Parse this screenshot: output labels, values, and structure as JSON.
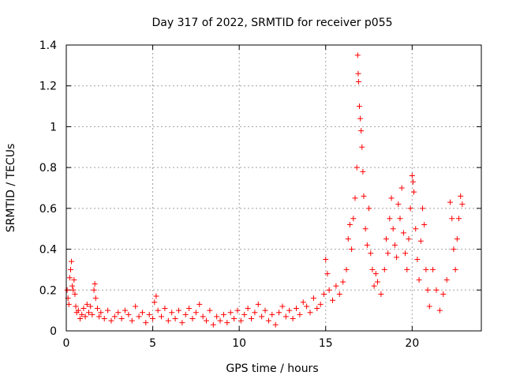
{
  "chart_data": {
    "type": "scatter",
    "title": "Day 317 of 2022, SRMTID for receiver p055",
    "xlabel": "GPS time / hours",
    "ylabel": "SRMTID / TECUs",
    "xlim": [
      0,
      24
    ],
    "ylim": [
      0,
      1.4
    ],
    "xticks": [
      0,
      5,
      10,
      15,
      20
    ],
    "xtick_labels": [
      "0",
      "5",
      "10",
      "15",
      "20"
    ],
    "yticks": [
      0,
      0.2,
      0.4,
      0.6,
      0.8,
      1.0,
      1.2,
      1.4
    ],
    "ytick_labels": [
      "0",
      "0.2",
      "0.4",
      "0.6",
      "0.8",
      "1",
      "1.2",
      "1.4"
    ],
    "grid": true,
    "marker": "+",
    "marker_color": "#ff0000",
    "series": [
      {
        "name": "SRMTID",
        "points": [
          [
            0.05,
            0.2
          ],
          [
            0.1,
            0.16
          ],
          [
            0.15,
            0.13
          ],
          [
            0.2,
            0.26
          ],
          [
            0.25,
            0.3
          ],
          [
            0.3,
            0.34
          ],
          [
            0.35,
            0.22
          ],
          [
            0.4,
            0.2
          ],
          [
            0.45,
            0.25
          ],
          [
            0.5,
            0.18
          ],
          [
            0.55,
            0.12
          ],
          [
            0.6,
            0.09
          ],
          [
            0.7,
            0.1
          ],
          [
            0.8,
            0.06
          ],
          [
            0.9,
            0.08
          ],
          [
            1.0,
            0.11
          ],
          [
            1.1,
            0.07
          ],
          [
            1.2,
            0.13
          ],
          [
            1.3,
            0.09
          ],
          [
            1.4,
            0.12
          ],
          [
            1.5,
            0.08
          ],
          [
            1.6,
            0.2
          ],
          [
            1.65,
            0.23
          ],
          [
            1.7,
            0.16
          ],
          [
            1.8,
            0.11
          ],
          [
            1.9,
            0.07
          ],
          [
            2.0,
            0.09
          ],
          [
            2.2,
            0.06
          ],
          [
            2.4,
            0.1
          ],
          [
            2.6,
            0.05
          ],
          [
            2.8,
            0.07
          ],
          [
            3.0,
            0.09
          ],
          [
            3.2,
            0.06
          ],
          [
            3.4,
            0.1
          ],
          [
            3.6,
            0.08
          ],
          [
            3.8,
            0.05
          ],
          [
            4.0,
            0.12
          ],
          [
            4.2,
            0.07
          ],
          [
            4.4,
            0.09
          ],
          [
            4.6,
            0.04
          ],
          [
            4.8,
            0.08
          ],
          [
            5.0,
            0.06
          ],
          [
            5.1,
            0.14
          ],
          [
            5.2,
            0.17
          ],
          [
            5.3,
            0.1
          ],
          [
            5.5,
            0.07
          ],
          [
            5.7,
            0.11
          ],
          [
            5.9,
            0.05
          ],
          [
            6.1,
            0.09
          ],
          [
            6.3,
            0.06
          ],
          [
            6.5,
            0.1
          ],
          [
            6.7,
            0.04
          ],
          [
            6.9,
            0.08
          ],
          [
            7.1,
            0.11
          ],
          [
            7.3,
            0.06
          ],
          [
            7.5,
            0.09
          ],
          [
            7.7,
            0.13
          ],
          [
            7.9,
            0.07
          ],
          [
            8.1,
            0.05
          ],
          [
            8.3,
            0.1
          ],
          [
            8.5,
            0.03
          ],
          [
            8.7,
            0.07
          ],
          [
            8.9,
            0.05
          ],
          [
            9.1,
            0.08
          ],
          [
            9.3,
            0.04
          ],
          [
            9.5,
            0.09
          ],
          [
            9.7,
            0.06
          ],
          [
            9.9,
            0.1
          ],
          [
            10.1,
            0.05
          ],
          [
            10.3,
            0.08
          ],
          [
            10.5,
            0.11
          ],
          [
            10.7,
            0.06
          ],
          [
            10.9,
            0.09
          ],
          [
            11.1,
            0.13
          ],
          [
            11.3,
            0.07
          ],
          [
            11.5,
            0.1
          ],
          [
            11.7,
            0.05
          ],
          [
            11.9,
            0.08
          ],
          [
            12.1,
            0.03
          ],
          [
            12.3,
            0.09
          ],
          [
            12.5,
            0.12
          ],
          [
            12.7,
            0.07
          ],
          [
            12.9,
            0.1
          ],
          [
            13.1,
            0.06
          ],
          [
            13.3,
            0.11
          ],
          [
            13.5,
            0.08
          ],
          [
            13.7,
            0.14
          ],
          [
            13.9,
            0.12
          ],
          [
            14.1,
            0.09
          ],
          [
            14.3,
            0.16
          ],
          [
            14.5,
            0.11
          ],
          [
            14.7,
            0.13
          ],
          [
            14.9,
            0.18
          ],
          [
            15.0,
            0.35
          ],
          [
            15.1,
            0.28
          ],
          [
            15.2,
            0.2
          ],
          [
            15.4,
            0.15
          ],
          [
            15.6,
            0.22
          ],
          [
            15.8,
            0.18
          ],
          [
            16.0,
            0.24
          ],
          [
            16.2,
            0.3
          ],
          [
            16.3,
            0.45
          ],
          [
            16.4,
            0.52
          ],
          [
            16.5,
            0.4
          ],
          [
            16.6,
            0.55
          ],
          [
            16.7,
            0.65
          ],
          [
            16.8,
            0.8
          ],
          [
            16.85,
            1.35
          ],
          [
            16.88,
            1.26
          ],
          [
            16.9,
            1.22
          ],
          [
            16.95,
            1.1
          ],
          [
            17.0,
            1.04
          ],
          [
            17.05,
            0.98
          ],
          [
            17.1,
            0.9
          ],
          [
            17.15,
            0.78
          ],
          [
            17.2,
            0.66
          ],
          [
            17.3,
            0.5
          ],
          [
            17.4,
            0.42
          ],
          [
            17.5,
            0.6
          ],
          [
            17.6,
            0.38
          ],
          [
            17.7,
            0.3
          ],
          [
            17.8,
            0.22
          ],
          [
            17.9,
            0.28
          ],
          [
            18.0,
            0.24
          ],
          [
            18.2,
            0.18
          ],
          [
            18.4,
            0.3
          ],
          [
            18.5,
            0.45
          ],
          [
            18.6,
            0.38
          ],
          [
            18.7,
            0.55
          ],
          [
            18.8,
            0.65
          ],
          [
            18.9,
            0.5
          ],
          [
            19.0,
            0.42
          ],
          [
            19.1,
            0.36
          ],
          [
            19.2,
            0.62
          ],
          [
            19.3,
            0.55
          ],
          [
            19.4,
            0.7
          ],
          [
            19.5,
            0.48
          ],
          [
            19.6,
            0.38
          ],
          [
            19.7,
            0.3
          ],
          [
            19.8,
            0.45
          ],
          [
            19.9,
            0.6
          ],
          [
            20.0,
            0.76
          ],
          [
            20.05,
            0.73
          ],
          [
            20.1,
            0.68
          ],
          [
            20.2,
            0.5
          ],
          [
            20.3,
            0.35
          ],
          [
            20.4,
            0.25
          ],
          [
            20.5,
            0.44
          ],
          [
            20.6,
            0.6
          ],
          [
            20.7,
            0.52
          ],
          [
            20.8,
            0.3
          ],
          [
            20.9,
            0.2
          ],
          [
            21.0,
            0.12
          ],
          [
            21.2,
            0.3
          ],
          [
            21.4,
            0.2
          ],
          [
            21.6,
            0.1
          ],
          [
            21.8,
            0.18
          ],
          [
            22.0,
            0.25
          ],
          [
            22.2,
            0.63
          ],
          [
            22.3,
            0.55
          ],
          [
            22.4,
            0.4
          ],
          [
            22.5,
            0.3
          ],
          [
            22.6,
            0.45
          ],
          [
            22.7,
            0.55
          ],
          [
            22.8,
            0.66
          ],
          [
            22.9,
            0.62
          ]
        ]
      }
    ]
  }
}
